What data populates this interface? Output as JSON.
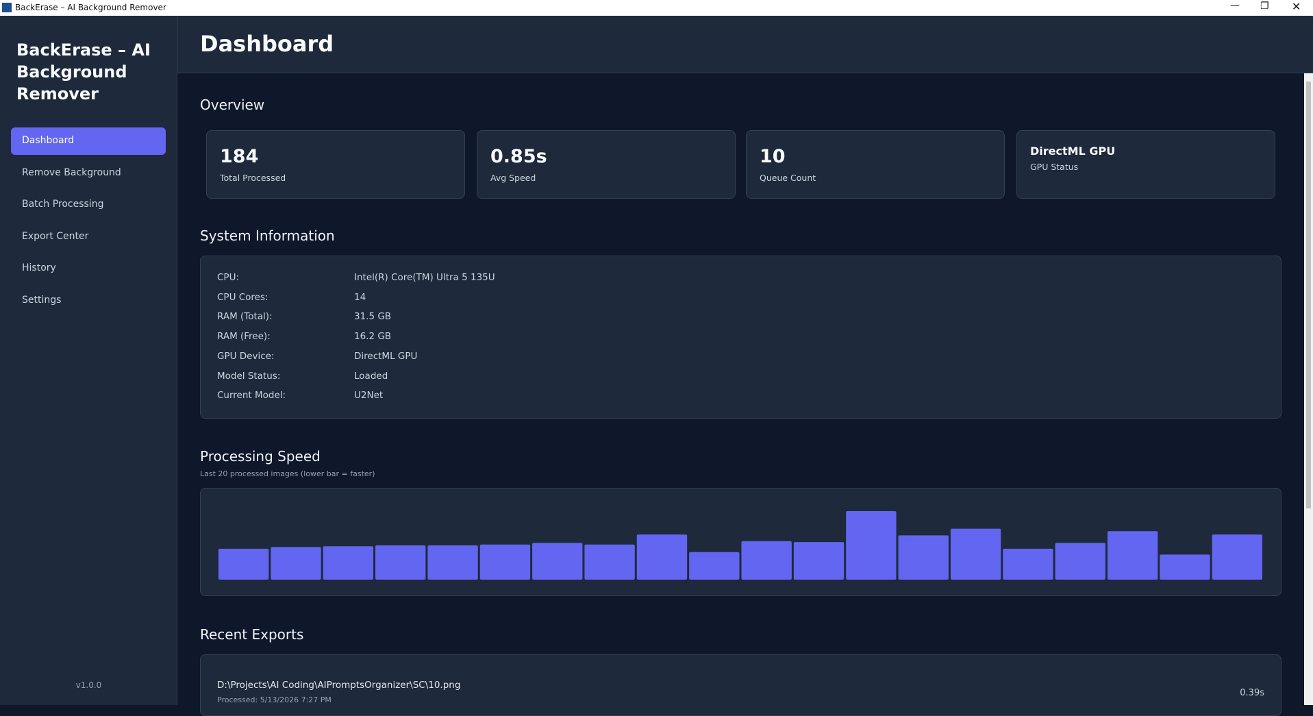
{
  "window": {
    "title": "BackErase – AI Background Remover"
  },
  "sidebar": {
    "app_title": "BackErase – AI Background Remover",
    "nav": [
      "Dashboard",
      "Remove Background",
      "Batch Processing",
      "Export Center",
      "History",
      "Settings"
    ],
    "version": "v1.0.0"
  },
  "header": {
    "title": "Dashboard"
  },
  "overview": {
    "title": "Overview",
    "cards": [
      {
        "value": "184",
        "label": "Total Processed"
      },
      {
        "value": "0.85s",
        "label": "Avg Speed"
      },
      {
        "value": "10",
        "label": "Queue Count"
      },
      {
        "value": "DirectML GPU",
        "label": "GPU Status"
      }
    ]
  },
  "system": {
    "title": "System Information",
    "rows": [
      [
        "CPU:",
        "Intel(R) Core(TM) Ultra 5 135U"
      ],
      [
        "CPU Cores:",
        "14"
      ],
      [
        "RAM (Total):",
        "31.5 GB"
      ],
      [
        "RAM (Free):",
        "16.2 GB"
      ],
      [
        "GPU Device:",
        "DirectML GPU"
      ],
      [
        "Model Status:",
        "Loaded"
      ],
      [
        "Current Model:",
        "U2Net"
      ]
    ]
  },
  "chart_data": {
    "type": "bar",
    "title": "Processing Speed",
    "subtitle": "Last 20 processed images (lower bar = faster)",
    "color": "#6366f1",
    "values": [
      37,
      39,
      40,
      41,
      41,
      42,
      44,
      42,
      54,
      33,
      46,
      45,
      82,
      53,
      61,
      37,
      44,
      58,
      30,
      54
    ]
  },
  "exports": {
    "title": "Recent Exports",
    "items": [
      {
        "path": "D:\\Projects\\AI Coding\\AIPromptsOrganizer\\SC\\10.png",
        "processed": "Processed: 5/13/2026 7:27 PM",
        "time": "0.39s"
      }
    ]
  }
}
